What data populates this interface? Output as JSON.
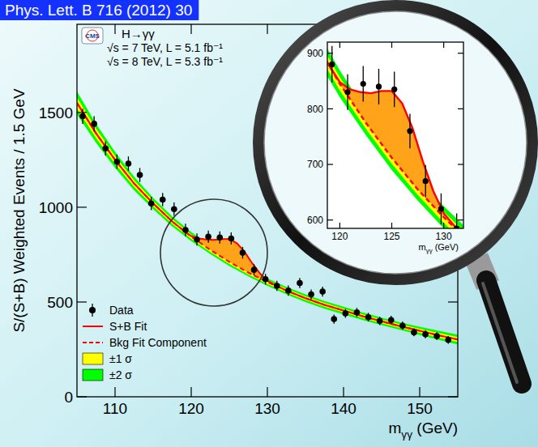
{
  "chart_data": {
    "type": "line",
    "title": "Phys. Lett. B 716 (2012) 30",
    "logo": "CMS",
    "annotations": [
      "H→γγ",
      "√s = 7 TeV, L = 5.1 fb⁻¹",
      "√s = 8 TeV, L = 5.3 fb⁻¹"
    ],
    "x_label": "mγγ (GeV)",
    "y_label": "S/(S+B) Weighted Events / 1.5 GeV",
    "xlim": [
      105,
      155
    ],
    "xticks": [
      110,
      120,
      130,
      140,
      150
    ],
    "ylim": [
      0,
      1965
    ],
    "yticks": [
      0,
      500,
      1000,
      1500
    ],
    "grid": false,
    "legend": "bottom-left",
    "series": [
      {
        "name": "Data",
        "type": "scatter",
        "color": "#000000",
        "marker": "circle",
        "x": [
          105.75,
          107.25,
          108.75,
          110.25,
          111.75,
          113.25,
          114.75,
          116.25,
          117.75,
          119.25,
          120.75,
          122.25,
          123.75,
          125.25,
          126.75,
          128.25,
          129.75,
          131.25,
          132.75,
          134.25,
          135.75,
          137.25,
          138.75,
          140.25,
          141.75,
          143.25,
          144.75,
          146.25,
          147.75,
          149.25,
          150.75,
          152.25,
          153.75
        ],
        "values": [
          1480,
          1440,
          1310,
          1240,
          1230,
          1170,
          1020,
          1040,
          990,
          880,
          830,
          845,
          840,
          835,
          760,
          670,
          620,
          585,
          560,
          600,
          540,
          555,
          410,
          440,
          445,
          420,
          400,
          405,
          375,
          340,
          330,
          320,
          300
        ],
        "errors": [
          40,
          40,
          38,
          38,
          38,
          37,
          35,
          35,
          35,
          33,
          32,
          32,
          32,
          32,
          31,
          29,
          28,
          27,
          27,
          27,
          26,
          26,
          24,
          24,
          24,
          23,
          22,
          22,
          22,
          21,
          21,
          20,
          20
        ]
      },
      {
        "name": "S+B Fit",
        "type": "line",
        "color": "#ff0000",
        "line_style": "solid",
        "x": [
          105,
          107.5,
          110,
          112.5,
          115,
          117.5,
          119,
          120,
          121,
          122,
          123,
          124,
          125,
          126,
          127,
          128,
          129,
          130,
          131,
          132.5,
          135,
          137.5,
          140,
          142.5,
          145,
          147.5,
          150,
          152.5,
          155
        ],
        "values": [
          1550,
          1390,
          1250,
          1125,
          1020,
          925,
          877,
          848,
          835,
          830,
          828,
          832,
          832,
          810,
          765,
          705,
          652,
          612,
          590,
          560,
          520,
          485,
          455,
          425,
          398,
          372,
          348,
          324,
          302
        ]
      },
      {
        "name": "Bkg Fit Component",
        "type": "line",
        "color": "#ff0000",
        "line_style": "dashed",
        "x": [
          105,
          107.5,
          110,
          112.5,
          115,
          117.5,
          120,
          122.5,
          125,
          127.5,
          130,
          132.5,
          135,
          137.5,
          140,
          142.5,
          145,
          147.5,
          150,
          152.5,
          155
        ],
        "values": [
          1550,
          1390,
          1250,
          1125,
          1020,
          925,
          845,
          775,
          712,
          655,
          605,
          560,
          520,
          485,
          455,
          425,
          398,
          372,
          348,
          324,
          302
        ]
      },
      {
        "name": "±1 σ",
        "type": "band",
        "color": "#ffff00",
        "x": [
          105,
          107.5,
          110,
          112.5,
          115,
          117.5,
          120,
          122.5,
          125,
          127.5,
          130,
          132.5,
          135,
          137.5,
          140,
          142.5,
          145,
          147.5,
          150,
          152.5,
          155
        ],
        "low": [
          1520,
          1365,
          1229,
          1107,
          1005,
          912,
          833,
          764,
          701,
          645,
          595,
          550,
          510,
          475,
          445,
          415,
          388,
          362,
          337,
          312,
          289
        ],
        "high": [
          1580,
          1415,
          1271,
          1143,
          1035,
          938,
          857,
          786,
          723,
          665,
          615,
          570,
          530,
          495,
          465,
          435,
          408,
          382,
          359,
          336,
          315
        ]
      },
      {
        "name": "±2 σ",
        "type": "band",
        "color": "#00ff00",
        "x": [
          105,
          107.5,
          110,
          112.5,
          115,
          117.5,
          120,
          122.5,
          125,
          127.5,
          130,
          132.5,
          135,
          137.5,
          140,
          142.5,
          145,
          147.5,
          150,
          152.5,
          155
        ],
        "low": [
          1490,
          1340,
          1208,
          1089,
          990,
          899,
          821,
          753,
          690,
          635,
          585,
          540,
          500,
          465,
          435,
          405,
          378,
          352,
          326,
          300,
          276
        ],
        "high": [
          1610,
          1440,
          1292,
          1161,
          1050,
          951,
          869,
          797,
          734,
          675,
          625,
          580,
          540,
          505,
          475,
          445,
          418,
          392,
          370,
          348,
          328
        ]
      }
    ],
    "inset": {
      "xlim": [
        118.8,
        131.9
      ],
      "ylim": [
        585,
        920
      ],
      "xticks": [
        120,
        125,
        130
      ],
      "yticks": [
        600,
        700,
        800,
        900
      ],
      "x_label": "mγγ (GeV)"
    }
  }
}
